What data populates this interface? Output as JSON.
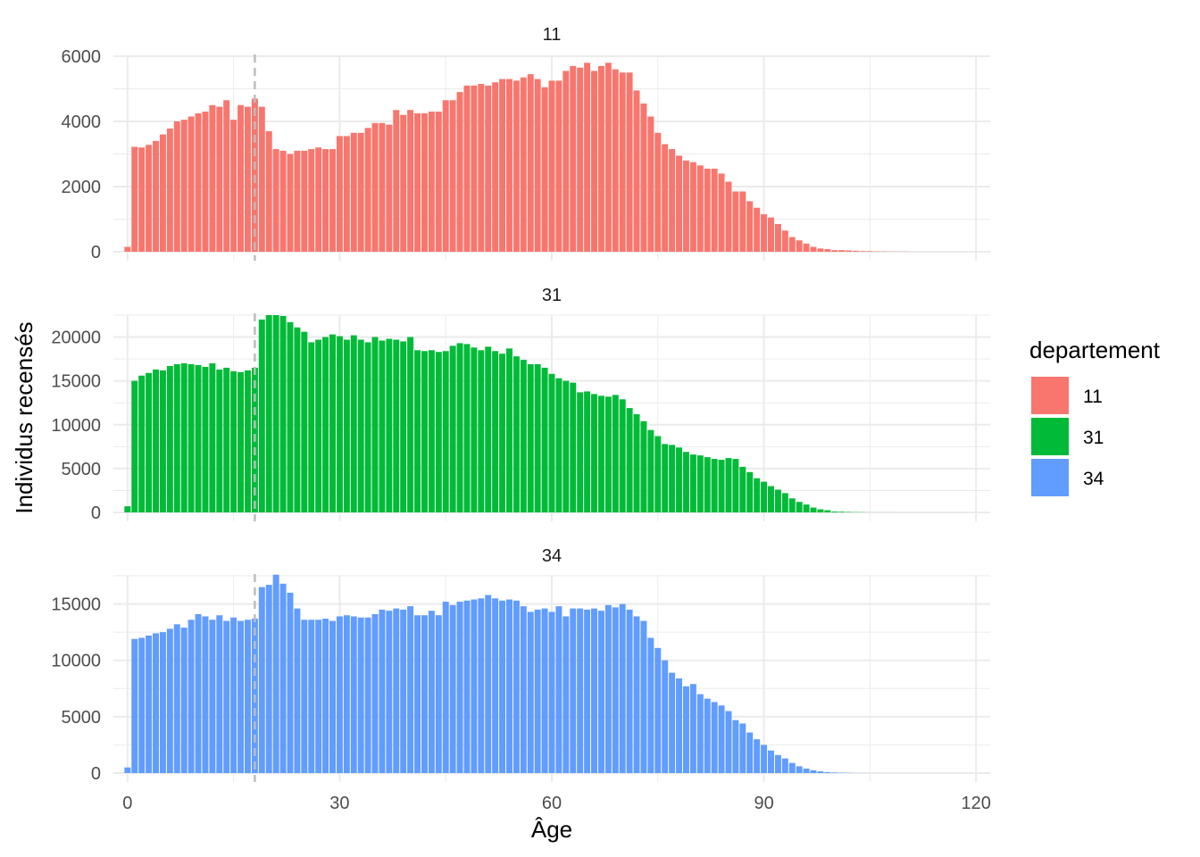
{
  "chart_data": {
    "type": "bar",
    "facet_by": "departement",
    "x_axis": {
      "label": "Âge",
      "lim": [
        -2,
        122
      ],
      "ticks": [
        0,
        30,
        60,
        90,
        120
      ],
      "minor_ticks": [
        15,
        45,
        75,
        105
      ]
    },
    "y_axis_label": "Individus recensés",
    "reference_line": {
      "x": 18,
      "style": "dashed",
      "color": "#bdbdbd"
    },
    "grid": true,
    "legend": {
      "title": "departement",
      "position": "right",
      "items": [
        {
          "label": "11",
          "color": "#F8766D"
        },
        {
          "label": "31",
          "color": "#00BA38"
        },
        {
          "label": "34",
          "color": "#619CFF"
        }
      ]
    },
    "panels": [
      {
        "strip": "11",
        "color": "#F8766D",
        "ylim": [
          0,
          6000
        ],
        "yticks": [
          0,
          2000,
          4000,
          6000
        ],
        "yticks_minor": [
          1000,
          3000,
          5000
        ],
        "x": [
          0,
          1,
          2,
          3,
          4,
          5,
          6,
          7,
          8,
          9,
          10,
          11,
          12,
          13,
          14,
          15,
          16,
          17,
          18,
          19,
          20,
          21,
          22,
          23,
          24,
          25,
          26,
          27,
          28,
          29,
          30,
          31,
          32,
          33,
          34,
          35,
          36,
          37,
          38,
          39,
          40,
          41,
          42,
          43,
          44,
          45,
          46,
          47,
          48,
          49,
          50,
          51,
          52,
          53,
          54,
          55,
          56,
          57,
          58,
          59,
          60,
          61,
          62,
          63,
          64,
          65,
          66,
          67,
          68,
          69,
          70,
          71,
          72,
          73,
          74,
          75,
          76,
          77,
          78,
          79,
          80,
          81,
          82,
          83,
          84,
          85,
          86,
          87,
          88,
          89,
          90,
          91,
          92,
          93,
          94,
          95,
          96,
          97,
          98,
          99,
          100,
          101,
          102,
          103,
          104,
          105,
          106,
          107,
          108,
          109,
          110
        ],
        "values": [
          150,
          3220,
          3200,
          3280,
          3400,
          3600,
          3780,
          4000,
          4050,
          4150,
          4250,
          4300,
          4500,
          4450,
          4650,
          4050,
          4500,
          4450,
          4700,
          4450,
          3700,
          3150,
          3100,
          3000,
          3100,
          3100,
          3150,
          3200,
          3150,
          3150,
          3550,
          3550,
          3650,
          3650,
          3800,
          3950,
          3950,
          3900,
          4350,
          4200,
          4350,
          4250,
          4250,
          4300,
          4300,
          4650,
          4650,
          4900,
          5100,
          5100,
          5150,
          5100,
          5200,
          5300,
          5300,
          5250,
          5350,
          5450,
          5300,
          5050,
          5250,
          5250,
          5550,
          5700,
          5650,
          5800,
          5550,
          5700,
          5800,
          5600,
          5500,
          5500,
          4950,
          4550,
          4150,
          3650,
          3300,
          3150,
          2950,
          2800,
          2750,
          2650,
          2550,
          2550,
          2400,
          2150,
          1850,
          1850,
          1550,
          1350,
          1150,
          1050,
          850,
          650,
          450,
          350,
          250,
          150,
          100,
          80,
          50,
          50,
          40,
          30,
          20,
          20,
          10,
          10,
          5,
          5,
          5
        ]
      },
      {
        "strip": "31",
        "color": "#00BA38",
        "ylim": [
          0,
          22500
        ],
        "yticks": [
          0,
          5000,
          10000,
          15000,
          20000
        ],
        "yticks_minor": [
          2500,
          7500,
          12500,
          17500,
          22500
        ],
        "x": [
          0,
          1,
          2,
          3,
          4,
          5,
          6,
          7,
          8,
          9,
          10,
          11,
          12,
          13,
          14,
          15,
          16,
          17,
          18,
          19,
          20,
          21,
          22,
          23,
          24,
          25,
          26,
          27,
          28,
          29,
          30,
          31,
          32,
          33,
          34,
          35,
          36,
          37,
          38,
          39,
          40,
          41,
          42,
          43,
          44,
          45,
          46,
          47,
          48,
          49,
          50,
          51,
          52,
          53,
          54,
          55,
          56,
          57,
          58,
          59,
          60,
          61,
          62,
          63,
          64,
          65,
          66,
          67,
          68,
          69,
          70,
          71,
          72,
          73,
          74,
          75,
          76,
          77,
          78,
          79,
          80,
          81,
          82,
          83,
          84,
          85,
          86,
          87,
          88,
          89,
          90,
          91,
          92,
          93,
          94,
          95,
          96,
          97,
          98,
          99,
          100,
          101,
          102,
          103,
          104,
          105,
          106,
          107,
          108,
          109,
          110
        ],
        "values": [
          700,
          15000,
          15600,
          15900,
          16300,
          16200,
          16700,
          16900,
          17000,
          16900,
          16800,
          16600,
          17000,
          16300,
          16500,
          16100,
          16000,
          16200,
          16500,
          22000,
          22500,
          22500,
          22400,
          21700,
          21100,
          20600,
          19400,
          19700,
          20000,
          20300,
          20100,
          19700,
          20200,
          19700,
          19400,
          20000,
          19600,
          19800,
          19700,
          19500,
          20000,
          18500,
          18400,
          18500,
          18300,
          18400,
          19000,
          19300,
          19200,
          18800,
          18500,
          18900,
          18400,
          18100,
          18700,
          17800,
          17400,
          16900,
          16900,
          16500,
          15800,
          15300,
          15000,
          14800,
          13700,
          13800,
          13500,
          13300,
          13200,
          13400,
          12900,
          11900,
          11200,
          10400,
          9400,
          8700,
          7800,
          7700,
          7400,
          6900,
          6600,
          6500,
          6300,
          6100,
          6000,
          6200,
          6100,
          5200,
          4600,
          3900,
          3500,
          3000,
          2600,
          2200,
          1600,
          1200,
          900,
          550,
          350,
          250,
          100,
          80,
          50,
          30,
          20,
          10,
          5,
          5,
          5,
          0,
          0
        ]
      },
      {
        "strip": "34",
        "color": "#619CFF",
        "ylim": [
          0,
          17500
        ],
        "yticks": [
          0,
          5000,
          10000,
          15000
        ],
        "yticks_minor": [
          2500,
          7500,
          12500,
          17500
        ],
        "x": [
          0,
          1,
          2,
          3,
          4,
          5,
          6,
          7,
          8,
          9,
          10,
          11,
          12,
          13,
          14,
          15,
          16,
          17,
          18,
          19,
          20,
          21,
          22,
          23,
          24,
          25,
          26,
          27,
          28,
          29,
          30,
          31,
          32,
          33,
          34,
          35,
          36,
          37,
          38,
          39,
          40,
          41,
          42,
          43,
          44,
          45,
          46,
          47,
          48,
          49,
          50,
          51,
          52,
          53,
          54,
          55,
          56,
          57,
          58,
          59,
          60,
          61,
          62,
          63,
          64,
          65,
          66,
          67,
          68,
          69,
          70,
          71,
          72,
          73,
          74,
          75,
          76,
          77,
          78,
          79,
          80,
          81,
          82,
          83,
          84,
          85,
          86,
          87,
          88,
          89,
          90,
          91,
          92,
          93,
          94,
          95,
          96,
          97,
          98,
          99,
          100,
          101,
          102,
          103,
          104,
          105,
          106,
          107,
          108,
          109,
          110
        ],
        "values": [
          500,
          11900,
          12000,
          12200,
          12400,
          12500,
          12800,
          13200,
          12900,
          13600,
          14100,
          13900,
          13600,
          14000,
          13500,
          13800,
          13500,
          13600,
          13700,
          16500,
          16700,
          17600,
          16800,
          16000,
          14600,
          13600,
          13600,
          13600,
          13700,
          13500,
          13900,
          14000,
          13900,
          13800,
          13800,
          14100,
          14500,
          14400,
          14600,
          14500,
          14800,
          14000,
          14000,
          14400,
          14000,
          15200,
          14900,
          15200,
          15300,
          15400,
          15500,
          15800,
          15500,
          15300,
          15400,
          15300,
          14800,
          14300,
          14500,
          14600,
          14300,
          14800,
          13900,
          14600,
          14600,
          14500,
          14600,
          14400,
          14900,
          14700,
          15000,
          14500,
          13900,
          13500,
          12000,
          11100,
          10000,
          8900,
          8400,
          7700,
          7900,
          7000,
          6600,
          6300,
          6000,
          5500,
          4700,
          4400,
          3600,
          3000,
          2500,
          2000,
          1600,
          1300,
          900,
          600,
          400,
          250,
          150,
          80,
          50,
          30,
          20,
          10,
          5,
          5,
          5,
          0,
          0,
          0,
          0
        ]
      }
    ]
  }
}
